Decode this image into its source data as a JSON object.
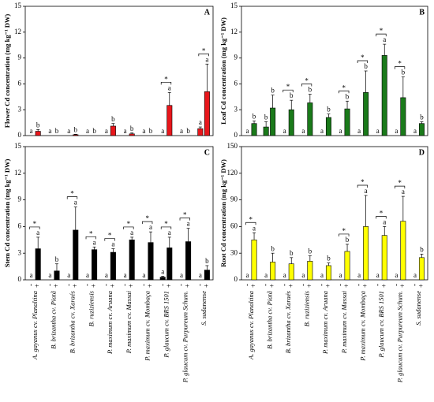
{
  "chart_data": [
    {
      "type": "bar",
      "panel_label": "A",
      "ylabel": "Flower Cd concentration (mg kg⁻¹ DW)",
      "ylim": [
        0,
        15
      ],
      "yticks": [
        0,
        3,
        6,
        9,
        12,
        15
      ],
      "series": [
        {
          "color": "#e8161b",
          "values": [
            0,
            0,
            0,
            0,
            0,
            0,
            0,
            0,
            0,
            0.8
          ],
          "errors": [
            0,
            0,
            0,
            0,
            0,
            0,
            0,
            0,
            0,
            0.2
          ],
          "letters": [
            "a",
            "a",
            "a",
            "a",
            "a",
            "a",
            "a",
            "a",
            "a",
            "a"
          ]
        },
        {
          "color": "#e8161b",
          "values": [
            0.5,
            0,
            0.1,
            0,
            1.1,
            0.2,
            0,
            3.5,
            0,
            5.1
          ],
          "errors": [
            0.2,
            0,
            0.05,
            0,
            0.3,
            0.1,
            0,
            1.5,
            0,
            3.2
          ],
          "letters": [
            "b",
            "b",
            "b",
            "b",
            "b",
            "b",
            "b",
            "a",
            "b",
            "a"
          ]
        }
      ],
      "asterisks": [
        null,
        null,
        null,
        null,
        null,
        null,
        null,
        "*",
        null,
        "*"
      ]
    },
    {
      "type": "bar",
      "panel_label": "B",
      "ylabel": "Leaf Cd concentration (mg kg⁻¹ DW)",
      "ylim": [
        0,
        15
      ],
      "yticks": [
        0,
        3,
        6,
        9,
        12,
        15
      ],
      "series": [
        {
          "color": "#1a7a1a",
          "values": [
            0,
            1.0,
            0,
            0,
            0,
            0,
            0,
            0,
            0,
            0
          ],
          "errors": [
            0,
            0.6,
            0,
            0,
            0,
            0,
            0,
            0,
            0,
            0
          ],
          "letters": [
            "a",
            "b",
            "a",
            "a",
            "a",
            "a",
            "a",
            "a",
            "a",
            "a"
          ]
        },
        {
          "color": "#1a7a1a",
          "values": [
            1.4,
            3.2,
            3.0,
            3.8,
            2.1,
            3.1,
            5.0,
            9.3,
            4.4,
            1.4
          ],
          "errors": [
            0.3,
            1.5,
            1.1,
            1.0,
            0.4,
            0.9,
            2.5,
            1.3,
            2.4,
            0.2
          ],
          "letters": [
            "b",
            "b",
            "b",
            "b",
            "b",
            "b",
            "b",
            "a",
            "b",
            "b"
          ]
        }
      ],
      "asterisks": [
        null,
        null,
        "*",
        "*",
        null,
        "*",
        "*",
        "*",
        "*",
        null
      ]
    },
    {
      "type": "bar",
      "panel_label": "C",
      "ylabel": "Stem Cd concentration (mg kg⁻¹ DW)",
      "ylim": [
        0,
        15
      ],
      "yticks": [
        0,
        3,
        6,
        9,
        12,
        15
      ],
      "categories": [
        "A. gayanus cv. Planaltina",
        "B. brizantha cv. Piatã",
        "B. brizantha cv. Xaraés",
        "B. ruziziensis",
        "P. maximum cv. Aruana",
        "P. maximum cv. Massai",
        "P. maximum cv. Mombaça",
        "P. glaucum cv. BRS 1501",
        "P. glaucum cv. Purpureum Schum.",
        "S. sudanense"
      ],
      "series": [
        {
          "name": "-",
          "color": "#000000",
          "values": [
            0,
            0,
            0,
            0,
            0,
            0,
            0,
            0.3,
            0,
            0
          ],
          "errors": [
            0,
            0,
            0,
            0,
            0,
            0,
            0,
            0.1,
            0,
            0
          ],
          "letters": [
            "a",
            "a",
            "a",
            "a",
            "a",
            "a",
            "a",
            "a",
            "a",
            "a"
          ]
        },
        {
          "name": "+",
          "color": "#000000",
          "values": [
            3.5,
            1.0,
            5.6,
            3.4,
            3.1,
            4.5,
            4.2,
            3.6,
            4.3,
            1.1
          ],
          "errors": [
            1.3,
            0.8,
            2.6,
            0.3,
            0.4,
            0.3,
            1.2,
            1.2,
            1.5,
            0.5
          ],
          "letters": [
            "a",
            "b",
            "a",
            "a",
            "a",
            "a",
            "a",
            "a",
            "a",
            "b"
          ]
        }
      ],
      "asterisks": [
        "*",
        null,
        "*",
        "*",
        "*",
        "*",
        "*",
        "*",
        "*",
        null
      ]
    },
    {
      "type": "bar",
      "panel_label": "D",
      "ylabel": "Root Cd concentration (mg kg⁻¹ DW)",
      "ylim": [
        0,
        150
      ],
      "yticks": [
        0,
        30,
        60,
        90,
        120,
        150
      ],
      "categories": [
        "A. gayanus cv. Planaltina",
        "B. brizantha cv. Piatã",
        "B. brizantha cv. Xaraés",
        "B. ruziziensis",
        "P. maximum cv. Aruana",
        "P. maximum cv. Massai",
        "P. maximum cv. Mombaça",
        "P. glaucum cv. BRS 1501",
        "P. glaucum cv. Purpureum Schum.",
        "S. sudanense"
      ],
      "series": [
        {
          "name": "-",
          "color": "#ffff00",
          "values": [
            0,
            0,
            0,
            0,
            0,
            0,
            0,
            0,
            0,
            0
          ],
          "errors": [
            0,
            0,
            0,
            0,
            0,
            0,
            0,
            0,
            0,
            0
          ],
          "letters": [
            "a",
            "a",
            "a",
            "a",
            "a",
            "a",
            "a",
            "a",
            "a",
            "a"
          ]
        },
        {
          "name": "+",
          "color": "#ffff00",
          "values": [
            45,
            20,
            18,
            21,
            16,
            32,
            60,
            50,
            66,
            25
          ],
          "errors": [
            8,
            10,
            7,
            6,
            3,
            8,
            35,
            10,
            28,
            4
          ],
          "letters": [
            "a",
            "b",
            "b",
            "b",
            "b",
            "b",
            "a",
            "a",
            "a",
            "b"
          ]
        }
      ],
      "asterisks": [
        "*",
        null,
        null,
        null,
        null,
        "*",
        "*",
        "*",
        "*",
        null
      ]
    }
  ]
}
